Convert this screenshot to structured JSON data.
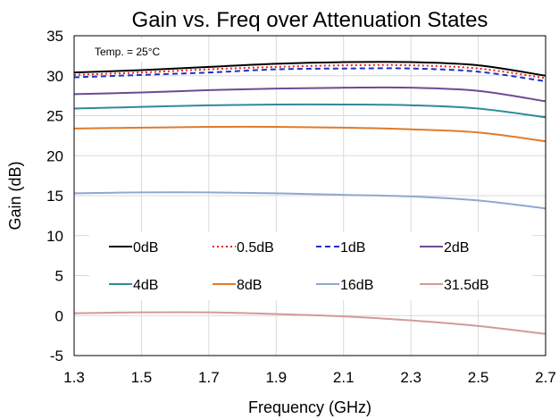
{
  "chart_data": {
    "type": "line",
    "title": "Gain vs. Freq over Attenuation States",
    "annotation": "Temp. = 25°C",
    "xlabel": "Frequency (GHz)",
    "ylabel": "Gain (dB)",
    "xlim": [
      1.3,
      2.7
    ],
    "ylim": [
      -5,
      35
    ],
    "xticks": [
      1.3,
      1.5,
      1.7,
      1.9,
      2.1,
      2.3,
      2.5,
      2.7
    ],
    "yticks": [
      -5,
      0,
      5,
      10,
      15,
      20,
      25,
      30,
      35
    ],
    "grid": true,
    "legend_position": "lower-center, inside plot",
    "x": [
      1.3,
      1.5,
      1.7,
      1.9,
      2.1,
      2.3,
      2.5,
      2.7
    ],
    "series": [
      {
        "name": "0dB",
        "color": "#000000",
        "dash": "solid",
        "values": [
          30.4,
          30.7,
          31.1,
          31.5,
          31.7,
          31.7,
          31.3,
          30.0
        ]
      },
      {
        "name": "0.5dB",
        "color": "#e8221c",
        "dash": "dot",
        "values": [
          30.1,
          30.4,
          30.8,
          31.1,
          31.3,
          31.3,
          30.9,
          29.7
        ]
      },
      {
        "name": "1dB",
        "color": "#2030c8",
        "dash": "dash",
        "values": [
          29.8,
          30.1,
          30.4,
          30.8,
          30.9,
          30.9,
          30.5,
          29.3
        ]
      },
      {
        "name": "2dB",
        "color": "#6a4c93",
        "dash": "solid",
        "values": [
          27.7,
          27.9,
          28.2,
          28.4,
          28.5,
          28.5,
          28.1,
          26.8
        ]
      },
      {
        "name": "4dB",
        "color": "#2e8b9a",
        "dash": "solid",
        "values": [
          25.9,
          26.1,
          26.3,
          26.4,
          26.4,
          26.3,
          25.9,
          24.8
        ]
      },
      {
        "name": "8dB",
        "color": "#e07b2a",
        "dash": "solid",
        "values": [
          23.4,
          23.5,
          23.6,
          23.6,
          23.5,
          23.3,
          22.9,
          21.8
        ]
      },
      {
        "name": "16dB",
        "color": "#8fa9cc",
        "dash": "solid",
        "values": [
          15.3,
          15.4,
          15.4,
          15.3,
          15.1,
          14.9,
          14.4,
          13.4
        ]
      },
      {
        "name": "31.5dB",
        "color": "#d49a98",
        "dash": "solid",
        "values": [
          0.3,
          0.4,
          0.4,
          0.2,
          -0.1,
          -0.6,
          -1.3,
          -2.3
        ]
      }
    ]
  }
}
